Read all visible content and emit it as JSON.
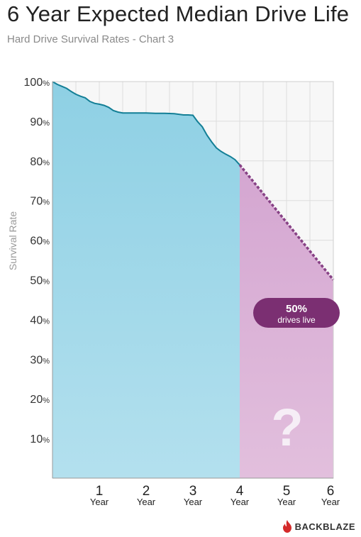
{
  "title": "6 Year Expected Median Drive Life",
  "subtitle": "Hard Drive Survival Rates - Chart 3",
  "brand": "BACKBLAZE",
  "callout": {
    "value": "50%",
    "text": "drives live"
  },
  "question_mark": "?",
  "colors": {
    "actual_fill": "#9fd6e8",
    "actual_line": "#137f96",
    "projected_fill": "#dcb3d8",
    "projected_line": "#874185",
    "callout_bg": "#7b2f72",
    "grid": "#dddddd",
    "brand_red": "#d42a2a"
  },
  "chart_data": {
    "type": "area",
    "title": "6 Year Expected Median Drive Life",
    "subtitle": "Hard Drive Survival Rates - Chart 3",
    "ylabel": "Survival Rate",
    "xlabel": "",
    "xlim": [
      0,
      6
    ],
    "ylim": [
      0,
      100
    ],
    "grid": true,
    "y_ticks": [
      {
        "value": 10,
        "label": "10%"
      },
      {
        "value": 20,
        "label": "20%"
      },
      {
        "value": 30,
        "label": "30%"
      },
      {
        "value": 40,
        "label": "40%"
      },
      {
        "value": 50,
        "label": "50%"
      },
      {
        "value": 60,
        "label": "60%"
      },
      {
        "value": 70,
        "label": "70%"
      },
      {
        "value": 80,
        "label": "80%"
      },
      {
        "value": 90,
        "label": "90%"
      },
      {
        "value": 100,
        "label": "100%"
      }
    ],
    "x_ticks": [
      {
        "value": 1,
        "number": "1",
        "unit": "Year"
      },
      {
        "value": 2,
        "number": "2",
        "unit": "Year"
      },
      {
        "value": 3,
        "number": "3",
        "unit": "Year"
      },
      {
        "value": 4,
        "number": "4",
        "unit": "Year"
      },
      {
        "value": 5,
        "number": "5",
        "unit": "Year"
      },
      {
        "value": 6,
        "number": "6",
        "unit": "Year"
      }
    ],
    "series": [
      {
        "kind": "actual",
        "x": [
          0,
          0.1,
          0.2,
          0.3,
          0.4,
          0.5,
          0.6,
          0.7,
          0.8,
          0.9,
          1.0,
          1.1,
          1.2,
          1.3,
          1.4,
          1.5,
          1.6,
          1.7,
          1.8,
          1.9,
          2.0,
          2.2,
          2.4,
          2.6,
          2.8,
          2.9,
          3.0,
          3.1,
          3.2,
          3.3,
          3.4,
          3.5,
          3.6,
          3.7,
          3.8,
          3.9,
          4.0
        ],
        "y": [
          100,
          99.3,
          98.8,
          98.3,
          97.5,
          96.8,
          96.3,
          95.9,
          95,
          94.5,
          94.3,
          94,
          93.5,
          92.7,
          92.3,
          92.1,
          92.1,
          92.1,
          92.1,
          92.1,
          92.1,
          92,
          92,
          91.9,
          91.6,
          91.6,
          91.5,
          89.9,
          88.6,
          86.5,
          84.8,
          83.3,
          82.4,
          81.7,
          81.1,
          80.3,
          79.0
        ]
      },
      {
        "kind": "projected",
        "x": [
          4,
          6
        ],
        "y": [
          79.0,
          50.0
        ]
      }
    ]
  }
}
